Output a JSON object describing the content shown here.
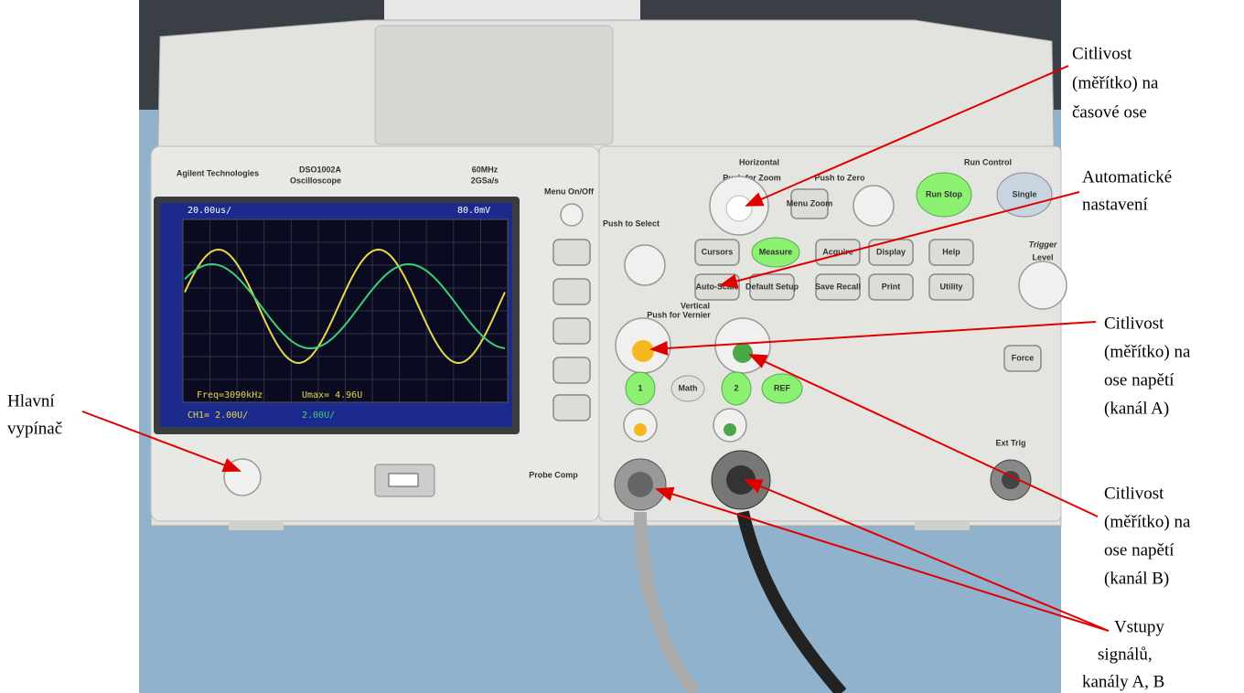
{
  "annotations": [
    {
      "lines": [
        "Citlivost",
        "(měřítko) na",
        "časové ose"
      ]
    },
    {
      "lines": [
        "Automatické",
        "nastavení"
      ]
    },
    {
      "lines": [
        "Citlivost",
        "(měřítko) na",
        "ose napětí",
        "(kanál A)"
      ]
    },
    {
      "lines": [
        "Citlivost",
        "(měřítko) na",
        "ose napětí",
        "(kanál B)"
      ]
    },
    {
      "lines": [
        "Vstupy",
        "signálů,",
        "kanály A, B"
      ]
    },
    {
      "lines": [
        "Hlavní",
        "vypínač"
      ]
    }
  ],
  "device": {
    "brand": "Agilent Technologies",
    "model": "DSO1002A",
    "model_sub": "Oscilloscope",
    "bandwidth": "60MHz",
    "sample_rate": "2GSa/s",
    "menu": "Menu On/Off",
    "horizontal": "Horizontal",
    "run_control": "Run Control",
    "push_zoom": "Push for Zoom",
    "menu_zoom": "Menu Zoom",
    "push_zero": "Push to Zero",
    "run_stop": "Run Stop",
    "single": "Single",
    "push_select": "Push to Select",
    "cursors": "Cursors",
    "measure": "Measure",
    "acquire": "Acquire",
    "display": "Display",
    "help": "Help",
    "auto_scale": "Auto-Scale",
    "default_setup": "Default Setup",
    "save_recall": "Save Recall",
    "print": "Print",
    "utility": "Utility",
    "vertical": "Vertical",
    "push_vernier": "Push for Vernier",
    "ch1": "1",
    "math": "Math",
    "ch2": "2",
    "ref": "REF",
    "trigger": "Trigger",
    "level": "Level",
    "force": "Force",
    "ext_trig": "Ext Trig",
    "probe_comp": "Probe Comp"
  },
  "screen": {
    "timebase": "20.00us/",
    "trigger_level": "80.0mV",
    "freq": "Freq=3090kHz",
    "umax": "Umax= 4.96U",
    "ch1_scale": "CH1= 2.00U/",
    "ch2_scale": "2.00U/"
  }
}
